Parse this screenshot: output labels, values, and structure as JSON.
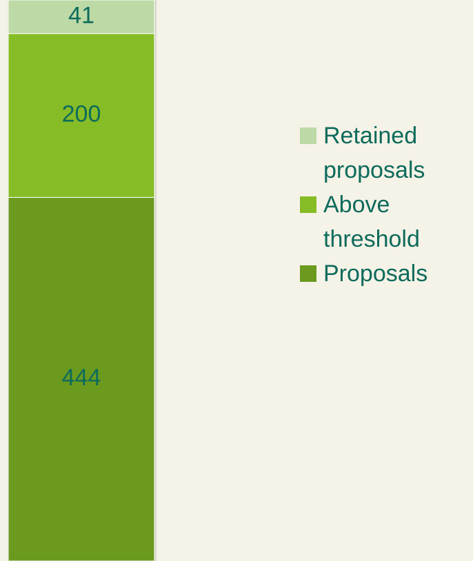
{
  "chart_data": {
    "type": "stacked_bar",
    "categories": [
      null
    ],
    "series": [
      {
        "name": "Proposals",
        "color": "#6b9a1f",
        "values": [
          444
        ]
      },
      {
        "name": "Above threshold",
        "color": "#86bd26",
        "values": [
          200
        ]
      },
      {
        "name": "Retained proposals",
        "color": "#bcd9a6",
        "values": [
          41
        ]
      }
    ],
    "ylim": [
      0,
      685
    ],
    "data_labels": true,
    "legend": "right"
  }
}
